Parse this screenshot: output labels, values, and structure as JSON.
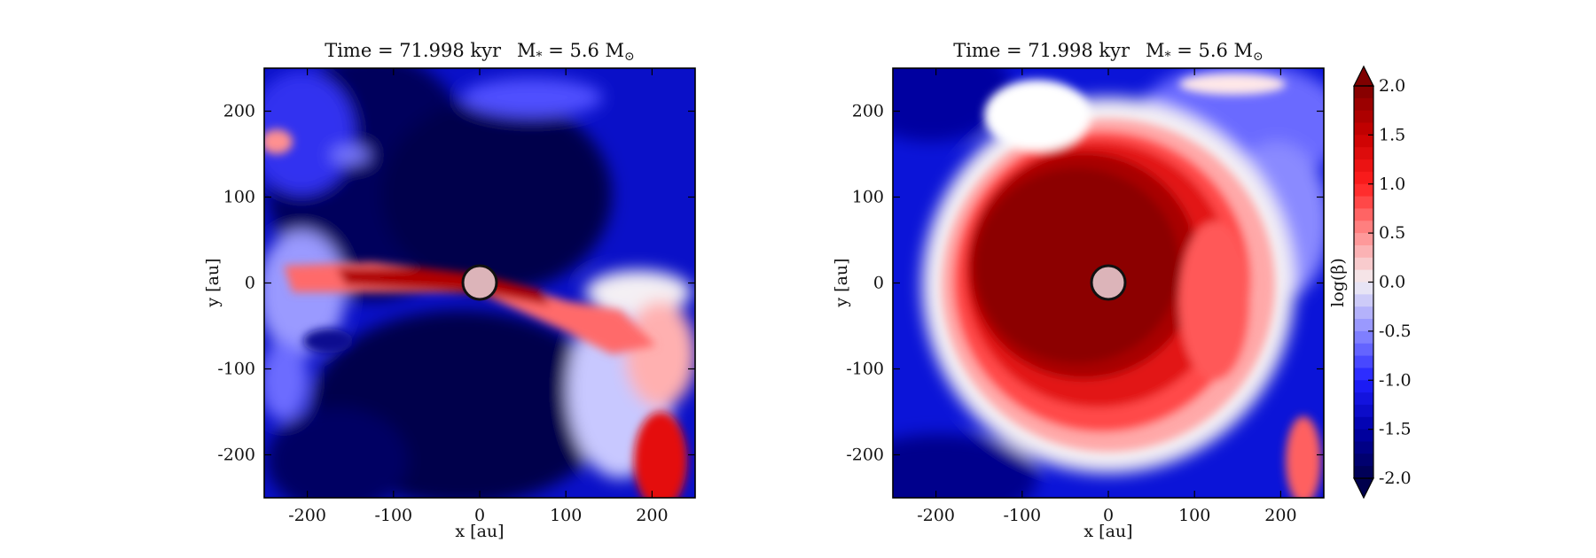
{
  "chart_data": [
    {
      "type": "heatmap",
      "panel": "left",
      "title": "Time = 71.998 kyr    M * = 5.6 M⊙",
      "title_parts": {
        "time": "Time = 71.998 kyr",
        "mass_prefix": "M",
        "mass_sub": "*",
        "mass_value": " = 5.6 M",
        "mass_unit": "⊙"
      },
      "xlabel": "x [au]",
      "ylabel": "y [au]",
      "xlim": [
        -250,
        250
      ],
      "ylim": [
        -250,
        250
      ],
      "xticks": [
        -200,
        -100,
        0,
        100,
        200
      ],
      "yticks": [
        -200,
        -100,
        0,
        100,
        200
      ],
      "xtick_labels": [
        "-200",
        "-100",
        "0",
        "100",
        "200"
      ],
      "ytick_labels": [
        "-200",
        "-100",
        "0",
        "100",
        "200"
      ],
      "grid": false,
      "central_object": {
        "x": 0,
        "y": 0,
        "radius": 20,
        "color": "#dcb4b9"
      },
      "features": [
        {
          "kind": "band",
          "x": [
            -150,
            130
          ],
          "y_center": 0,
          "thickness": 40,
          "angle_deg": -3,
          "value": 1.7
        },
        {
          "kind": "band",
          "x": [
            60,
            215
          ],
          "y_center": -35,
          "thickness": 35,
          "angle_deg": -12,
          "value": 0.9
        },
        {
          "kind": "blob",
          "x": -240,
          "y": 160,
          "r": 20,
          "value": 0.8
        },
        {
          "kind": "blob",
          "x": 210,
          "y": -205,
          "r": 35,
          "value": 1.1
        },
        {
          "kind": "blob",
          "x": -195,
          "y": -10,
          "r": 50,
          "value": -0.6
        },
        {
          "kind": "blob",
          "x": 170,
          "y": -130,
          "r": 55,
          "value": -0.4
        },
        {
          "kind": "blob",
          "x": 80,
          "y": 140,
          "r": 90,
          "value": -2.0
        },
        {
          "kind": "blob",
          "x": 0,
          "y": -170,
          "r": 110,
          "value": -2.0
        }
      ],
      "background_value": -1.4
    },
    {
      "type": "heatmap",
      "panel": "right",
      "title": "Time = 71.998 kyr    M * = 5.6 M⊙",
      "title_parts": {
        "time": "Time = 71.998 kyr",
        "mass_prefix": "M",
        "mass_sub": "*",
        "mass_value": " = 5.6 M",
        "mass_unit": "⊙"
      },
      "xlabel": "x [au]",
      "ylabel": "y [au]",
      "xlim": [
        -250,
        250
      ],
      "ylim": [
        -250,
        250
      ],
      "xticks": [
        -200,
        -100,
        0,
        100,
        200
      ],
      "yticks": [
        -200,
        -100,
        0,
        100,
        200
      ],
      "xtick_labels": [
        "-200",
        "-100",
        "0",
        "100",
        "200"
      ],
      "ytick_labels": [
        "-200",
        "-100",
        "0",
        "100",
        "200"
      ],
      "grid": false,
      "central_object": {
        "x": 0,
        "y": 0,
        "radius": 20,
        "color": "#dcb4b9"
      },
      "features": [
        {
          "kind": "spiral_disk",
          "center": [
            0,
            0
          ],
          "inner_r": 110,
          "outer_r": 190,
          "core_value": 1.9,
          "edge_value": 0.0
        },
        {
          "kind": "arm",
          "from": [
            -20,
            150
          ],
          "to": [
            160,
            200
          ],
          "value": -0.3
        },
        {
          "kind": "blob",
          "x": 230,
          "y": -220,
          "r": 25,
          "value": 0.6
        }
      ],
      "background_value": -1.3
    }
  ],
  "colorbar": {
    "label": "log(β)",
    "min": -2.0,
    "max": 2.0,
    "extend": "both",
    "ticks": [
      2.0,
      1.5,
      1.0,
      0.5,
      0.0,
      -0.5,
      -1.0,
      -1.5,
      -2.0
    ],
    "tick_labels": [
      "2.0",
      "1.5",
      "1.0",
      "0.5",
      "0.0",
      "-0.5",
      "-1.0",
      "-1.5",
      "-2.0"
    ],
    "colormap": "seismic",
    "colors": [
      "#00004c",
      "#0000a8",
      "#1f1fff",
      "#8d8dff",
      "#f4f0f4",
      "#ff8d8d",
      "#ff1f1f",
      "#c90000",
      "#7f0000"
    ]
  }
}
